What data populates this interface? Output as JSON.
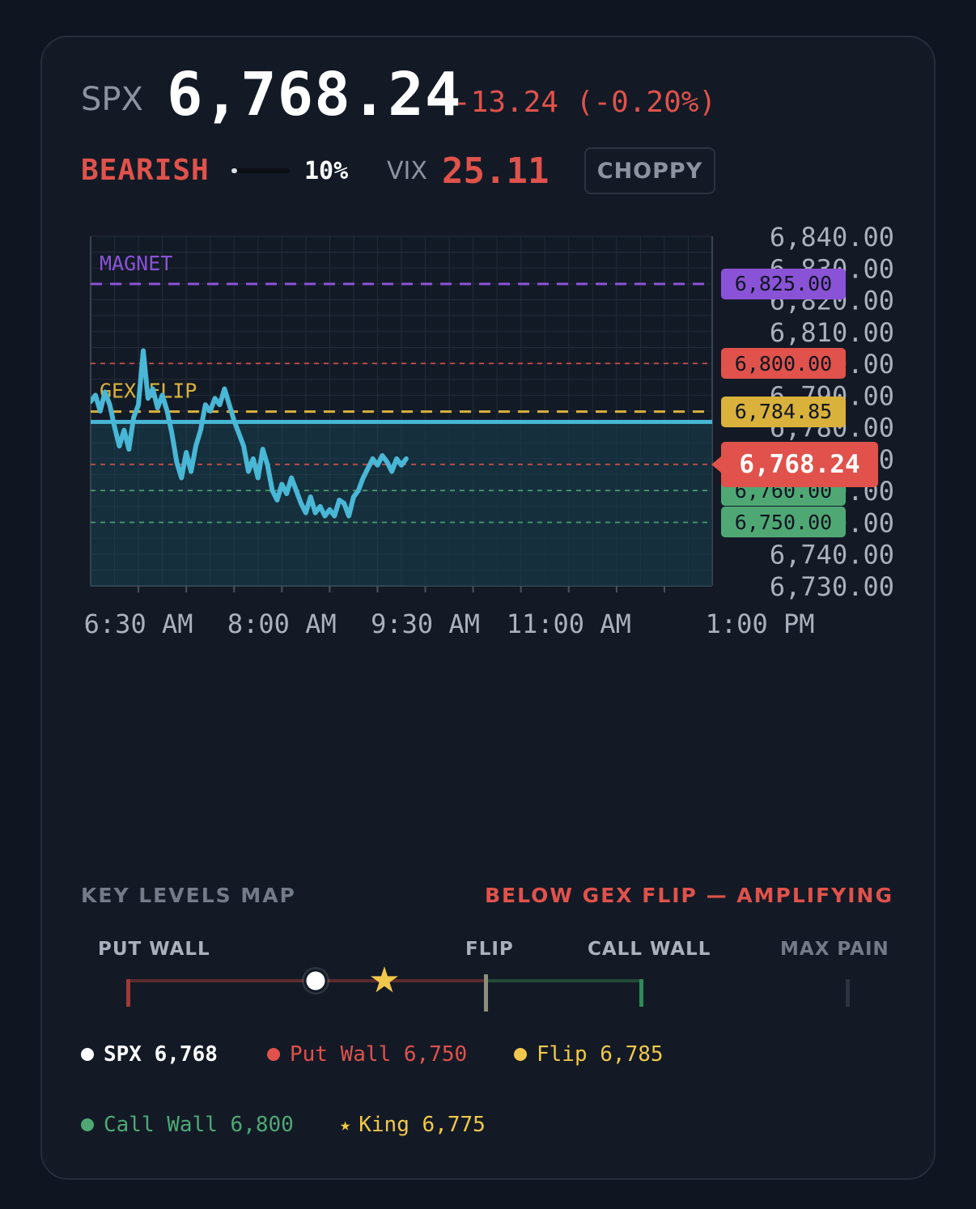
{
  "header": {
    "symbol": "SPX",
    "price": "6,768.24",
    "change": "-13.24 (-0.20%)"
  },
  "sentiment": {
    "bias_label": "BEARISH",
    "bias_strength_pct": 10,
    "bias_strength_label": "10%",
    "vix_label": "VIX",
    "vix_value": "25.11",
    "regime_badge": "CHOPPY"
  },
  "colors": {
    "bearish": "#e0524b",
    "bullish": "#4fa874",
    "flip": "#d9b13b",
    "magnet": "#8a52d6",
    "price_line": "#49b7d6",
    "text_muted": "#8b93a1"
  },
  "chart_data": {
    "type": "line",
    "y_ticks": [
      "6,840.00",
      "6,830.00",
      "6,820.00",
      "6,810.00",
      "6,800.00",
      "6,790.00",
      "6,780.00",
      "6,770.00",
      "6,760.00",
      "6,750.00",
      "6,740.00",
      "6,730.00"
    ],
    "x_ticks": [
      "6:30 AM",
      "8:00 AM",
      "9:30 AM",
      "11:00 AM",
      "1:00 PM"
    ],
    "ylim": [
      6730,
      6840
    ],
    "last_price": 6768.24,
    "last_price_label": "6,768.24",
    "levels": [
      {
        "name": "magnet",
        "label": "MAGNET",
        "value": 6825.0,
        "tag": "6,825.00",
        "color": "#8a52d6",
        "style": "dashed-bold"
      },
      {
        "name": "call-wall",
        "label": "",
        "value": 6800.0,
        "tag": "6,800.00",
        "color": "#e0524b",
        "style": "dashed"
      },
      {
        "name": "gex-flip",
        "label": "GEX FLIP",
        "value": 6784.85,
        "tag": "6,784.85",
        "color": "#d9b13b",
        "style": "dashed-bold"
      },
      {
        "name": "resistance",
        "label": "",
        "value": 6768.24,
        "tag": "",
        "color": "#e0524b",
        "style": "dashed"
      },
      {
        "name": "support-1",
        "label": "",
        "value": 6760.0,
        "tag": "6,760.00",
        "color": "#4fa874",
        "style": "dashed"
      },
      {
        "name": "support-2",
        "label": "",
        "value": 6750.0,
        "tag": "6,750.00",
        "color": "#4fa874",
        "style": "dashed"
      }
    ],
    "open_price": 6781.6,
    "series": [
      {
        "x": [
          0,
          0.05,
          0.1,
          0.15,
          0.2,
          0.25,
          0.3,
          0.35,
          0.4,
          0.45,
          0.5,
          0.55,
          0.6,
          0.65,
          0.7,
          0.75,
          0.8,
          0.85,
          0.9,
          0.95,
          1.0,
          1.05,
          1.1,
          1.15,
          1.2,
          1.25,
          1.3,
          1.35,
          1.4,
          1.45,
          1.5,
          1.55,
          1.6,
          1.65,
          1.7,
          1.75,
          1.8,
          1.85,
          1.9,
          1.95,
          2.0,
          2.05,
          2.1,
          2.15,
          2.2,
          2.25,
          2.3,
          2.35,
          2.4,
          2.45,
          2.5,
          2.55,
          2.6,
          2.65,
          2.7,
          2.75,
          2.8,
          2.85,
          2.9,
          2.95,
          3.0,
          3.05,
          3.1,
          3.15,
          3.2,
          3.25,
          3.3
        ],
        "values": [
          6788,
          6790,
          6785,
          6791,
          6787,
          6780,
          6774,
          6779,
          6773,
          6783,
          6787,
          6804,
          6789,
          6792,
          6786,
          6790,
          6785,
          6778,
          6769,
          6764,
          6772,
          6766,
          6774,
          6779,
          6787,
          6785,
          6789,
          6787,
          6792,
          6787,
          6782,
          6778,
          6774,
          6766,
          6770,
          6764,
          6773,
          6768,
          6760,
          6757,
          6762,
          6759,
          6764,
          6760,
          6756,
          6753,
          6758,
          6753,
          6755,
          6752,
          6754,
          6752,
          6757,
          6756,
          6752,
          6758,
          6760,
          6764,
          6767,
          6770,
          6768,
          6771,
          6769,
          6766,
          6770,
          6768,
          6770
        ]
      }
    ],
    "x_range_hours": [
      0,
      6.5
    ]
  },
  "key_levels": {
    "title": "KEY LEVELS MAP",
    "status": "BELOW GEX FLIP — AMPLIFYING",
    "markers": {
      "put_wall": "PUT WALL",
      "flip": "FLIP",
      "call_wall": "CALL WALL",
      "max_pain": "MAX PAIN"
    },
    "legend": [
      {
        "name": "spx",
        "label": "SPX",
        "value": "6,768",
        "color": "#ffffff"
      },
      {
        "name": "put-wall",
        "label": "Put Wall",
        "value": "6,750",
        "color": "#e0524b"
      },
      {
        "name": "flip",
        "label": "Flip",
        "value": "6,785",
        "color": "#f1c84b"
      },
      {
        "name": "call-wall",
        "label": "Call Wall",
        "value": "6,800",
        "color": "#4fa874"
      },
      {
        "name": "king",
        "label": "King",
        "value": "6,775",
        "color": "#f1c84b",
        "symbol": "★"
      }
    ]
  }
}
